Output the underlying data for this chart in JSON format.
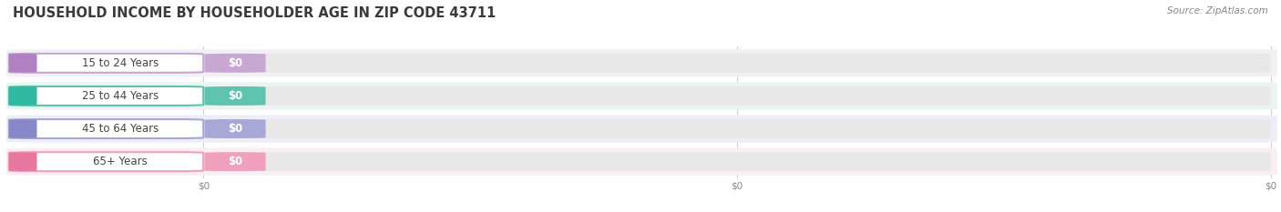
{
  "title": "HOUSEHOLD INCOME BY HOUSEHOLDER AGE IN ZIP CODE 43711",
  "source": "Source: ZipAtlas.com",
  "categories": [
    "15 to 24 Years",
    "25 to 44 Years",
    "45 to 64 Years",
    "65+ Years"
  ],
  "values": [
    0,
    0,
    0,
    0
  ],
  "bar_colors": [
    "#c8a8d3",
    "#5ec4b0",
    "#a8a8d8",
    "#f0a0bc"
  ],
  "dot_colors": [
    "#b080c0",
    "#30b8a0",
    "#8888c8",
    "#e878a0"
  ],
  "bg_row_colors": [
    "#f2eff5",
    "#eaf5f2",
    "#eeeeF8",
    "#faeef4"
  ],
  "title_fontsize": 10.5,
  "source_fontsize": 7.5,
  "label_fontsize": 8.5,
  "value_fontsize": 8.5,
  "tick_fontsize": 7.5,
  "background_color": "#ffffff",
  "grid_color": "#d0d0d0"
}
